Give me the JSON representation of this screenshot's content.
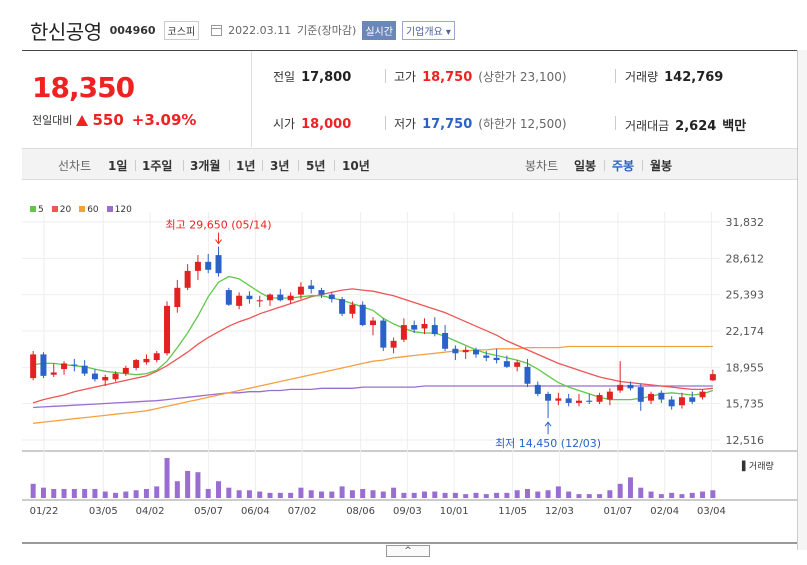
{
  "header": {
    "company": "한신공영",
    "code": "004960",
    "market": "코스피",
    "date": "2022.03.11",
    "date_suffix": "기준(장마감)",
    "live_label": "실시간",
    "info_label": "기업개요 ▾"
  },
  "price": {
    "current": "18,350",
    "change_label": "전일대비",
    "change_value": "550",
    "change_pct": "+3.09%"
  },
  "stats": {
    "prev_close_label": "전일",
    "prev_close": "17,800",
    "high_label": "고가",
    "high": "18,750",
    "upper_limit": "(상한가 23,100)",
    "volume_label": "거래량",
    "volume": "142,769",
    "open_label": "시가",
    "open": "18,000",
    "low_label": "저가",
    "low": "17,750",
    "lower_limit": "(하한가 12,500)",
    "amount_label": "거래대금",
    "amount": "2,624",
    "amount_unit": "백만"
  },
  "tabs": {
    "line_label": "선차트",
    "line_items": [
      "1일",
      "1주일",
      "3개월",
      "1년",
      "3년",
      "5년",
      "10년"
    ],
    "candle_label": "봉차트",
    "candle_items": [
      "일봉",
      "주봉",
      "월봉"
    ],
    "active_candle": "주봉"
  },
  "colors": {
    "up": "#e22222",
    "down": "#2a62c8",
    "ma5": "#5fc84a",
    "ma20": "#ee5555",
    "ma60": "#f5a040",
    "ma120": "#9a6ed0",
    "volume": "#9a6ed0"
  },
  "chart_data": {
    "type": "candlestick",
    "period": "weekly",
    "legend": [
      "5",
      "20",
      "60",
      "120"
    ],
    "y_ticks": [
      "31,832",
      "28,612",
      "25,393",
      "22,174",
      "18,955",
      "15,735",
      "12,516"
    ],
    "ylim": [
      12516,
      31832
    ],
    "x_ticks": [
      "01/22",
      "03/05",
      "04/02",
      "05/07",
      "06/04",
      "07/02",
      "08/06",
      "09/03",
      "10/01",
      "11/05",
      "12/03",
      "01/07",
      "02/04",
      "03/04"
    ],
    "max_annotation": "최고 29,650 (05/14)",
    "min_annotation": "최저 14,450 (12/03)",
    "volume_label": "거래량",
    "candles": [
      [
        18000,
        20400,
        17800,
        20100
      ],
      [
        20100,
        20300,
        18000,
        18200
      ],
      [
        18300,
        19300,
        18100,
        18500
      ],
      [
        18800,
        19500,
        18300,
        19300
      ],
      [
        19200,
        19700,
        18600,
        19100
      ],
      [
        19100,
        19600,
        18200,
        18400
      ],
      [
        18400,
        18800,
        17700,
        17900
      ],
      [
        17800,
        18300,
        17300,
        18100
      ],
      [
        17900,
        18600,
        17700,
        18400
      ],
      [
        18400,
        19100,
        18200,
        18900
      ],
      [
        18900,
        19700,
        18700,
        19600
      ],
      [
        19400,
        20100,
        19200,
        19700
      ],
      [
        19600,
        20400,
        19400,
        20200
      ],
      [
        20200,
        24800,
        20000,
        24400
      ],
      [
        24300,
        26700,
        23800,
        26000
      ],
      [
        26000,
        28100,
        25800,
        27500
      ],
      [
        27500,
        28900,
        26700,
        28300
      ],
      [
        28300,
        29000,
        27300,
        27600
      ],
      [
        28900,
        29650,
        27000,
        27300
      ],
      [
        25800,
        26000,
        24400,
        24500
      ],
      [
        24400,
        25600,
        24100,
        25300
      ],
      [
        25300,
        25700,
        24600,
        25000
      ],
      [
        24800,
        25300,
        24300,
        24900
      ],
      [
        24900,
        25500,
        24400,
        25400
      ],
      [
        25400,
        25900,
        24800,
        24900
      ],
      [
        24900,
        25600,
        24600,
        25300
      ],
      [
        25400,
        26500,
        25000,
        26100
      ],
      [
        26200,
        26700,
        25500,
        25900
      ],
      [
        25800,
        26000,
        25100,
        25400
      ],
      [
        25400,
        25600,
        24700,
        25000
      ],
      [
        25000,
        25200,
        23500,
        23700
      ],
      [
        23700,
        24800,
        23300,
        24500
      ],
      [
        24500,
        24800,
        22600,
        22700
      ],
      [
        22700,
        23400,
        21800,
        23100
      ],
      [
        23100,
        23300,
        20400,
        20700
      ],
      [
        20700,
        21600,
        20200,
        21300
      ],
      [
        21400,
        23300,
        21200,
        22700
      ],
      [
        22700,
        23100,
        22000,
        22300
      ],
      [
        22400,
        23300,
        21900,
        22800
      ],
      [
        22700,
        23400,
        21700,
        21900
      ],
      [
        22000,
        22700,
        20400,
        20600
      ],
      [
        20600,
        20900,
        19600,
        20200
      ],
      [
        20300,
        20800,
        19700,
        20500
      ],
      [
        20500,
        20700,
        19800,
        20100
      ],
      [
        20000,
        20400,
        19500,
        19800
      ],
      [
        19800,
        20600,
        19300,
        19600
      ],
      [
        19500,
        20000,
        18900,
        19000
      ],
      [
        19000,
        19600,
        18600,
        19400
      ],
      [
        19000,
        19700,
        17200,
        17500
      ],
      [
        17400,
        17700,
        16400,
        16600
      ],
      [
        16600,
        16800,
        14450,
        16000
      ],
      [
        16000,
        16700,
        15600,
        16200
      ],
      [
        16200,
        16600,
        15500,
        15800
      ],
      [
        15800,
        16600,
        15500,
        16000
      ],
      [
        16000,
        16600,
        15700,
        15900
      ],
      [
        15900,
        16700,
        15700,
        16500
      ],
      [
        16100,
        17100,
        15600,
        16800
      ],
      [
        16900,
        19500,
        16700,
        17400
      ],
      [
        17400,
        17700,
        16900,
        17100
      ],
      [
        17200,
        17500,
        15100,
        15900
      ],
      [
        16000,
        16800,
        15700,
        16600
      ],
      [
        16700,
        16900,
        15800,
        16100
      ],
      [
        16100,
        16400,
        15200,
        15500
      ],
      [
        15600,
        16700,
        15300,
        16300
      ],
      [
        16300,
        16800,
        15700,
        15900
      ],
      [
        16300,
        17000,
        16100,
        16800
      ],
      [
        17800,
        18750,
        17750,
        18350
      ]
    ],
    "volumes": [
      1.1,
      0.8,
      0.7,
      0.7,
      0.7,
      0.7,
      0.7,
      0.5,
      0.4,
      0.5,
      0.6,
      0.7,
      0.9,
      3.1,
      1.3,
      2.1,
      2.0,
      0.7,
      1.3,
      0.8,
      0.6,
      0.6,
      0.5,
      0.4,
      0.4,
      0.4,
      0.8,
      0.6,
      0.5,
      0.5,
      0.9,
      0.6,
      0.7,
      0.6,
      0.5,
      0.8,
      0.4,
      0.4,
      0.5,
      0.5,
      0.4,
      0.4,
      0.3,
      0.4,
      0.3,
      0.4,
      0.4,
      0.6,
      0.7,
      0.5,
      0.6,
      0.9,
      0.5,
      0.3,
      0.3,
      0.3,
      0.6,
      1.1,
      1.6,
      0.8,
      0.5,
      0.3,
      0.4,
      0.3,
      0.4,
      0.5,
      0.6
    ],
    "ma5": [
      19200,
      19300,
      19300,
      19200,
      19100,
      19000,
      18800,
      18600,
      18500,
      18400,
      18300,
      18400,
      18700,
      19500,
      20700,
      22000,
      23500,
      25200,
      26500,
      27000,
      26800,
      26200,
      25600,
      25100,
      25100,
      25100,
      25200,
      25300,
      25300,
      25100,
      24900,
      24600,
      24300,
      24000,
      23300,
      22800,
      22400,
      22100,
      22000,
      22000,
      21700,
      21300,
      20900,
      20500,
      20200,
      20000,
      19800,
      19600,
      19300,
      18800,
      18200,
      17600,
      17200,
      16900,
      16600,
      16300,
      16100,
      16100,
      16100,
      16200,
      16400,
      16600,
      16700,
      16600,
      16500,
      16600,
      16900
    ],
    "ma20": [
      15800,
      16100,
      16300,
      16500,
      16800,
      17000,
      17200,
      17400,
      17600,
      17800,
      18000,
      18200,
      18600,
      19100,
      19700,
      20300,
      21000,
      21600,
      22100,
      22600,
      23000,
      23300,
      23700,
      24000,
      24300,
      24600,
      24900,
      25200,
      25400,
      25600,
      25800,
      25900,
      25800,
      25700,
      25500,
      25300,
      25000,
      24700,
      24400,
      24100,
      23800,
      23400,
      23000,
      22600,
      22200,
      21800,
      21300,
      20900,
      20500,
      20100,
      19700,
      19300,
      19000,
      18700,
      18400,
      18100,
      17900,
      17700,
      17600,
      17500,
      17400,
      17300,
      17200,
      17100,
      17000,
      17000,
      17100
    ],
    "ma60": [
      14000,
      14100,
      14200,
      14300,
      14400,
      14500,
      14600,
      14700,
      14800,
      14900,
      15000,
      15100,
      15300,
      15500,
      15700,
      15900,
      16100,
      16300,
      16500,
      16700,
      16900,
      17100,
      17300,
      17500,
      17700,
      17900,
      18100,
      18300,
      18500,
      18700,
      18900,
      19100,
      19300,
      19500,
      19600,
      19800,
      19900,
      20000,
      20100,
      20200,
      20300,
      20400,
      20400,
      20500,
      20500,
      20600,
      20600,
      20600,
      20700,
      20700,
      20700,
      20700,
      20800,
      20800,
      20800,
      20800,
      20800,
      20800,
      20800,
      20800,
      20800,
      20800,
      20800,
      20800,
      20800,
      20800,
      20800
    ],
    "ma120": [
      15400,
      15450,
      15500,
      15550,
      15600,
      15650,
      15700,
      15750,
      15800,
      15850,
      15900,
      15950,
      16000,
      16100,
      16200,
      16300,
      16400,
      16500,
      16600,
      16700,
      16700,
      16800,
      16800,
      16900,
      16900,
      17000,
      17000,
      17000,
      17100,
      17100,
      17100,
      17100,
      17200,
      17200,
      17200,
      17200,
      17200,
      17200,
      17300,
      17300,
      17300,
      17300,
      17300,
      17300,
      17300,
      17300,
      17300,
      17300,
      17300,
      17300,
      17300,
      17300,
      17300,
      17300,
      17300,
      17300,
      17300,
      17300,
      17300,
      17300,
      17300,
      17300,
      17300,
      17300,
      17300,
      17300,
      17300
    ]
  },
  "ui": {
    "collapse_icon": "^"
  }
}
